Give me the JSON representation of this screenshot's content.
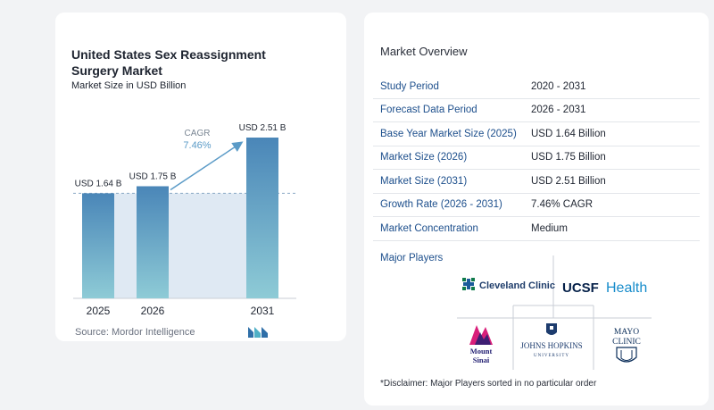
{
  "chart_card": {
    "title": "United States Sex Reassignment Surgery Market",
    "subtitle": "Market Size in USD Billion",
    "source": "Source: Mordor Intelligence",
    "cagr_label": "CAGR",
    "cagr_value": "7.46%"
  },
  "chart_data": {
    "type": "bar",
    "title": "United States Sex Reassignment Surgery Market",
    "ylabel": "Market Size in USD Billion",
    "categories": [
      "2025",
      "2026",
      "2031"
    ],
    "values": [
      1.64,
      1.75,
      2.51
    ],
    "data_labels": [
      "USD 1.64 B",
      "USD 1.75 B",
      "USD 2.51 B"
    ],
    "ylim": [
      0,
      2.51
    ],
    "cagr": "7.46%",
    "colors": {
      "bar_top": "#4a86b8",
      "bar_bottom": "#8ecbd6",
      "band": "#dfe9f3",
      "arrow": "#5b9bc7"
    }
  },
  "overview": {
    "title": "Market Overview",
    "rows": [
      {
        "key": "Study Period",
        "value": "2020 - 2031"
      },
      {
        "key": "Forecast Data Period",
        "value": "2026 - 2031"
      },
      {
        "key": "Base Year Market Size (2025)",
        "value": "USD 1.64 Billion"
      },
      {
        "key": "Market Size (2026)",
        "value": "USD 1.75 Billion"
      },
      {
        "key": "Market Size (2031)",
        "value": "USD 2.51 Billion"
      },
      {
        "key": "Growth Rate (2026 - 2031)",
        "value": "7.46% CAGR"
      },
      {
        "key": "Market Concentration",
        "value": "Medium"
      }
    ]
  },
  "players": {
    "title": "Major Players",
    "logos": [
      {
        "name": "Cleveland Clinic",
        "icon": "cleveland-clinic-logo"
      },
      {
        "name": "UCSF Health",
        "text_a": "UCSF",
        "text_b": "Health",
        "icon": "ucsf-health-logo"
      },
      {
        "name": "Mount Sinai",
        "line1": "Mount",
        "line2": "Sinai",
        "icon": "mount-sinai-logo"
      },
      {
        "name": "Johns Hopkins University",
        "line1": "JOHNS HOPKINS",
        "line2": "UNIVERSITY",
        "icon": "johns-hopkins-logo"
      },
      {
        "name": "Mayo Clinic",
        "line1": "MAYO",
        "line2": "CLINIC",
        "icon": "mayo-clinic-logo"
      }
    ]
  },
  "disclaimer": "*Disclaimer: Major Players sorted in no particular order"
}
